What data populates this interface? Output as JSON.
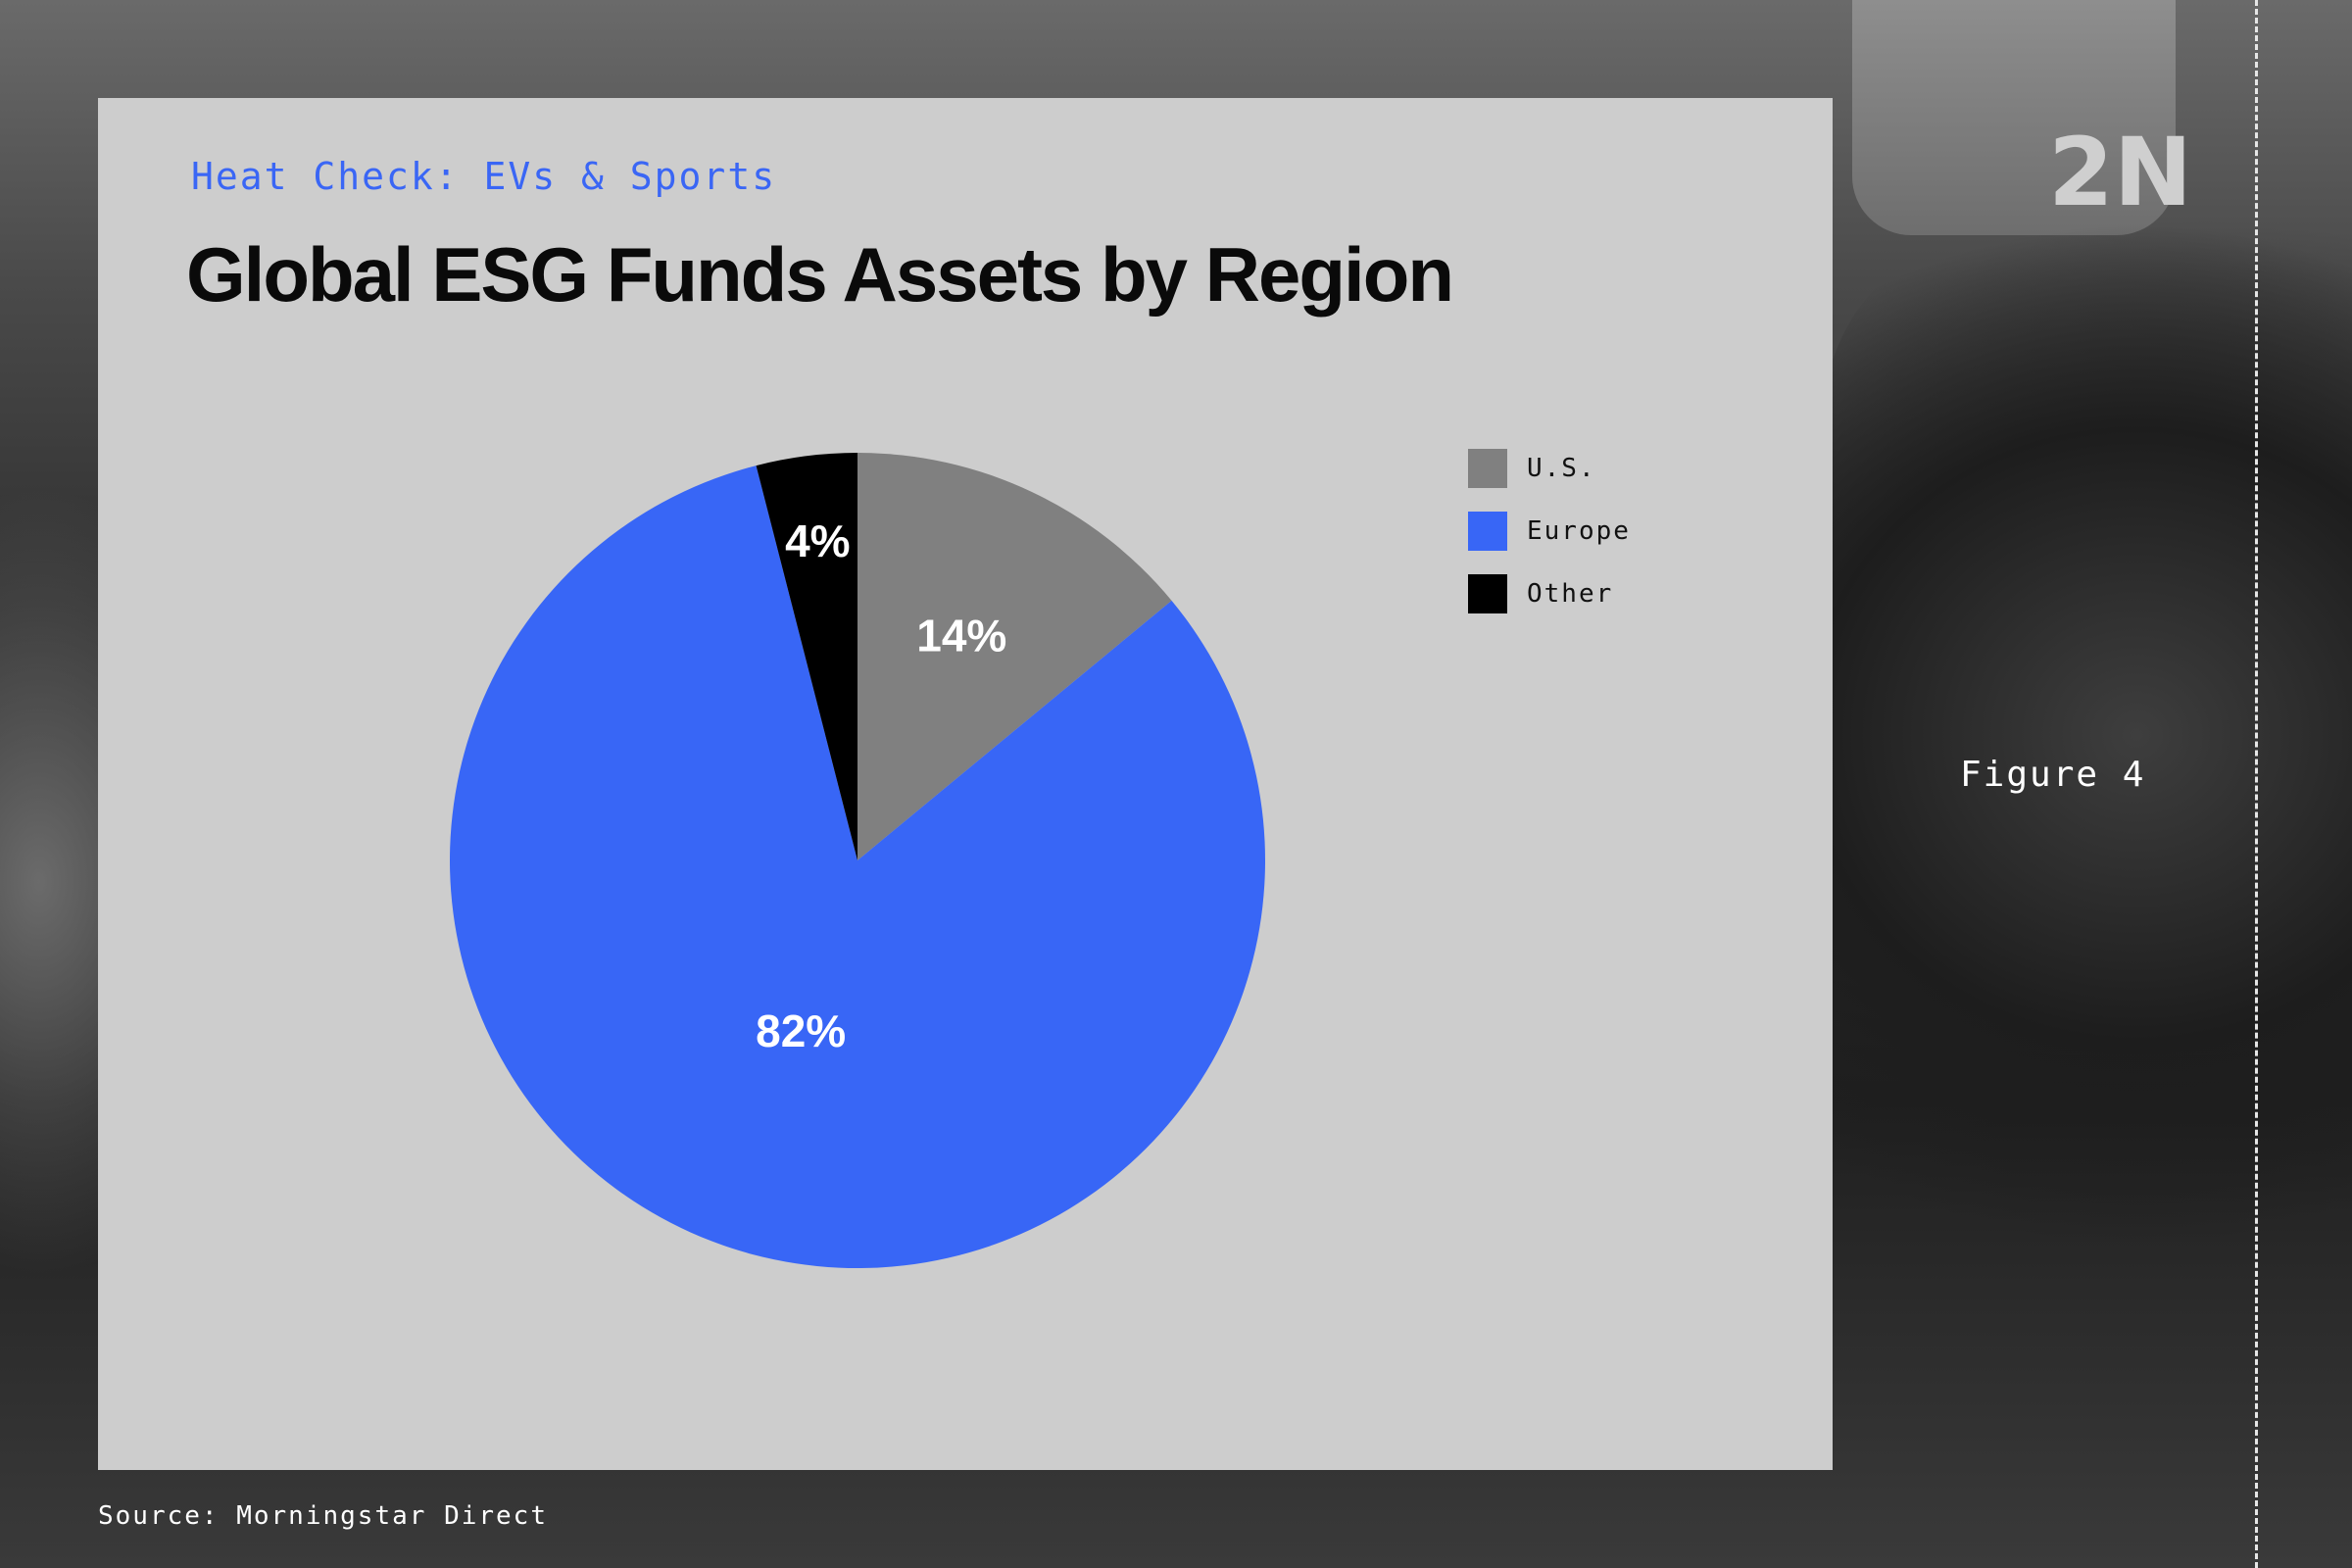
{
  "kicker": "Heat Check: EVs & Sports",
  "figure_label": "Figure 4",
  "source": "Source: Morningstar Direct",
  "background_sign_text": "2N",
  "chart_data": {
    "type": "pie",
    "title": "Global ESG Funds Assets by Region",
    "legend_position": "right",
    "slices": [
      {
        "name": "U.S.",
        "value": 14,
        "label": "14%",
        "color": "#808080"
      },
      {
        "name": "Europe",
        "value": 82,
        "label": "82%",
        "color": "#3866f6"
      },
      {
        "name": "Other",
        "value": 4,
        "label": "4%",
        "color": "#000000"
      }
    ]
  }
}
